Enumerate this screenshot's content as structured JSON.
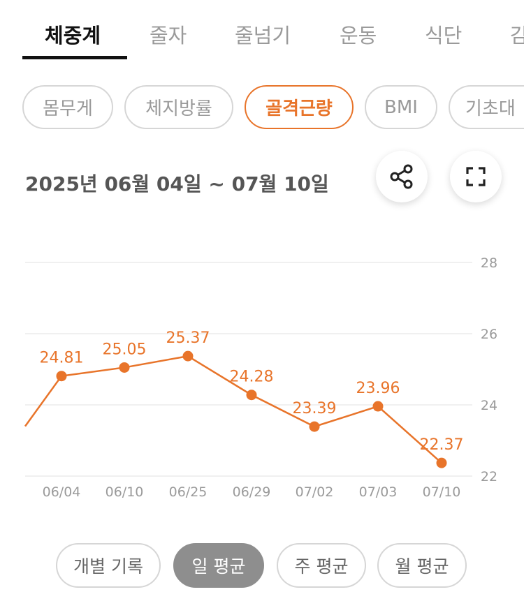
{
  "tabs": [
    "체중계",
    "줄자",
    "줄넘기",
    "운동",
    "식단",
    "감"
  ],
  "metric_chips": [
    "몸무게",
    "체지방률",
    "골격근량",
    "BMI",
    "기초대"
  ],
  "date_range": "2025년 06월 04일 ~ 07월 10일",
  "icons": {
    "share": "share-icon",
    "fullscreen": "fullscreen-icon"
  },
  "colors": {
    "accent": "#e8742a",
    "grid": "#ececec",
    "axis_text": "#9a9a9a"
  },
  "chart_data": {
    "type": "line",
    "categories": [
      "06/04",
      "06/10",
      "06/25",
      "06/29",
      "07/02",
      "07/03",
      "07/10"
    ],
    "values": [
      24.81,
      25.05,
      25.37,
      24.28,
      23.39,
      23.96,
      22.37
    ],
    "value_labels": [
      "24.81",
      "25.05",
      "25.37",
      "24.28",
      "23.39",
      "23.96",
      "22.37"
    ],
    "leading_partial_value": 23.4,
    "y_ticks": [
      "28",
      "26",
      "24",
      "22"
    ],
    "ylim": [
      22,
      28
    ],
    "y_axis_side": "right",
    "grid": true
  },
  "view_modes": [
    "개별 기록",
    "일 평균",
    "주 평균",
    "월 평균"
  ]
}
